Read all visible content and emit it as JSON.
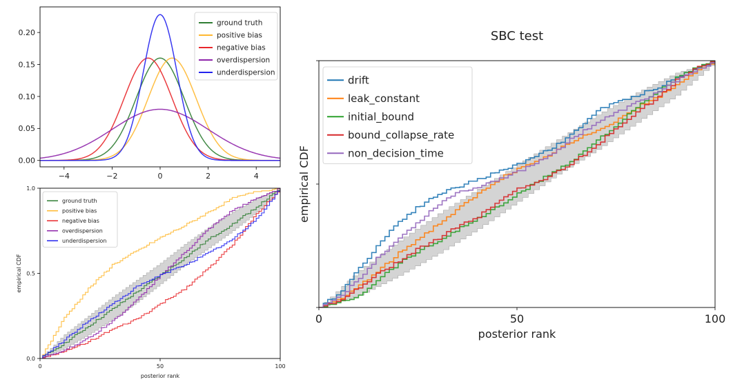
{
  "chart_data": [
    {
      "type": "line",
      "title": "",
      "xlabel": "",
      "ylabel": "",
      "xlim": [
        -5,
        5
      ],
      "ylim": [
        -0.01,
        0.24
      ],
      "xticks": [
        -4,
        -2,
        0,
        2,
        4
      ],
      "yticks": [
        0.0,
        0.05,
        0.1,
        0.15,
        0.2
      ],
      "xtick_labels": [
        "−4",
        "−2",
        "0",
        "2",
        "4"
      ],
      "ytick_labels": [
        "0.00",
        "0.05",
        "0.10",
        "0.15",
        "0.20"
      ],
      "grid": false,
      "legend_position": "top-right",
      "series": [
        {
          "name": "ground truth",
          "color": "#2e7d32",
          "mean": 0.0,
          "sd": 2.5,
          "peak": 0.16
        },
        {
          "name": "positive bias",
          "color": "#ffb830",
          "mean": 0.5,
          "sd": 2.5,
          "peak": 0.16
        },
        {
          "name": "negative bias",
          "color": "#e8262a",
          "mean": -0.5,
          "sd": 2.5,
          "peak": 0.16
        },
        {
          "name": "overdispersion",
          "color": "#8e24aa",
          "mean": 0.0,
          "sd": 5.0,
          "peak": 0.08
        },
        {
          "name": "underdispersion",
          "color": "#2222ee",
          "mean": 0.0,
          "sd": 1.75,
          "peak": 0.228
        }
      ]
    },
    {
      "type": "line",
      "title": "",
      "xlabel": "posterior rank",
      "ylabel": "empirical CDF",
      "xlim": [
        0,
        100
      ],
      "ylim": [
        0,
        1
      ],
      "xticks": [
        0,
        50,
        100
      ],
      "yticks": [
        0.0,
        0.5,
        1.0
      ],
      "xtick_labels": [
        "0",
        "50",
        "100"
      ],
      "ytick_labels": [
        "0.0",
        "0.5",
        "1.0"
      ],
      "grid": false,
      "legend_position": "top-left",
      "band": {
        "x": [
          0,
          10,
          20,
          30,
          40,
          50,
          60,
          70,
          80,
          90,
          100
        ],
        "lower": [
          0.0,
          0.06,
          0.14,
          0.23,
          0.33,
          0.44,
          0.55,
          0.65,
          0.75,
          0.86,
          1.0
        ],
        "upper": [
          0.0,
          0.14,
          0.25,
          0.36,
          0.46,
          0.56,
          0.67,
          0.77,
          0.86,
          0.94,
          1.0
        ]
      },
      "series": [
        {
          "name": "ground truth",
          "color": "#2e7d32",
          "x": [
            0,
            10,
            20,
            30,
            40,
            50,
            60,
            70,
            80,
            90,
            100
          ],
          "y": [
            0.0,
            0.09,
            0.19,
            0.29,
            0.39,
            0.49,
            0.59,
            0.7,
            0.79,
            0.89,
            1.0
          ]
        },
        {
          "name": "positive bias",
          "color": "#ffb830",
          "x": [
            0,
            10,
            20,
            30,
            40,
            50,
            60,
            70,
            80,
            90,
            100
          ],
          "y": [
            0.0,
            0.24,
            0.41,
            0.55,
            0.63,
            0.71,
            0.78,
            0.86,
            0.94,
            0.98,
            1.0
          ]
        },
        {
          "name": "negative bias",
          "color": "#e8262a",
          "x": [
            0,
            10,
            20,
            30,
            40,
            50,
            60,
            70,
            80,
            90,
            100
          ],
          "y": [
            0.0,
            0.04,
            0.1,
            0.17,
            0.23,
            0.32,
            0.41,
            0.53,
            0.67,
            0.85,
            1.0
          ]
        },
        {
          "name": "overdispersion",
          "color": "#8e24aa",
          "x": [
            0,
            10,
            20,
            30,
            40,
            50,
            60,
            70,
            80,
            90,
            100
          ],
          "y": [
            0.0,
            0.05,
            0.12,
            0.22,
            0.34,
            0.49,
            0.62,
            0.76,
            0.87,
            0.94,
            1.0
          ]
        },
        {
          "name": "underdispersion",
          "color": "#2222ee",
          "x": [
            0,
            10,
            20,
            30,
            40,
            50,
            60,
            70,
            80,
            90,
            100
          ],
          "y": [
            0.0,
            0.11,
            0.22,
            0.32,
            0.42,
            0.49,
            0.55,
            0.62,
            0.7,
            0.82,
            1.0
          ]
        }
      ]
    },
    {
      "type": "line",
      "title": "SBC test",
      "xlabel": "posterior rank",
      "ylabel": "empirical CDF",
      "xlim": [
        0,
        100
      ],
      "ylim": [
        0,
        1
      ],
      "xticks": [
        0,
        50,
        100
      ],
      "xtick_labels": [
        "0",
        "50",
        "100"
      ],
      "yticks": [
        0.0,
        0.5,
        1.0
      ],
      "ytick_labels": [
        "",
        "",
        ""
      ],
      "grid": false,
      "legend_position": "top-left",
      "band": {
        "x": [
          0,
          10,
          20,
          30,
          40,
          50,
          60,
          70,
          80,
          90,
          100
        ],
        "lower": [
          0.0,
          0.05,
          0.13,
          0.22,
          0.32,
          0.43,
          0.54,
          0.64,
          0.75,
          0.86,
          1.0
        ],
        "upper": [
          0.0,
          0.15,
          0.27,
          0.38,
          0.48,
          0.58,
          0.68,
          0.78,
          0.87,
          0.95,
          1.0
        ]
      },
      "series": [
        {
          "name": "drift",
          "color": "#1f77b4",
          "x": [
            0,
            5,
            10,
            15,
            20,
            25,
            30,
            35,
            40,
            45,
            50,
            55,
            60,
            65,
            70,
            75,
            80,
            85,
            90,
            95,
            100
          ],
          "y": [
            0.0,
            0.06,
            0.16,
            0.26,
            0.35,
            0.41,
            0.46,
            0.49,
            0.52,
            0.55,
            0.58,
            0.62,
            0.66,
            0.72,
            0.8,
            0.83,
            0.86,
            0.89,
            0.93,
            0.97,
            1.0
          ]
        },
        {
          "name": "leak_constant",
          "color": "#ff7f0e",
          "x": [
            0,
            5,
            10,
            15,
            20,
            25,
            30,
            35,
            40,
            45,
            50,
            55,
            60,
            65,
            70,
            75,
            80,
            85,
            90,
            95,
            100
          ],
          "y": [
            0.0,
            0.03,
            0.09,
            0.15,
            0.22,
            0.28,
            0.34,
            0.4,
            0.46,
            0.52,
            0.56,
            0.59,
            0.64,
            0.68,
            0.72,
            0.76,
            0.81,
            0.85,
            0.9,
            0.96,
            1.0
          ]
        },
        {
          "name": "initial_bound",
          "color": "#2ca02c",
          "x": [
            0,
            5,
            10,
            15,
            20,
            25,
            30,
            35,
            40,
            45,
            50,
            55,
            60,
            65,
            70,
            75,
            80,
            85,
            90,
            95,
            100
          ],
          "y": [
            0.0,
            0.02,
            0.05,
            0.12,
            0.18,
            0.23,
            0.27,
            0.32,
            0.36,
            0.41,
            0.46,
            0.51,
            0.56,
            0.61,
            0.68,
            0.74,
            0.81,
            0.87,
            0.93,
            0.97,
            1.0
          ]
        },
        {
          "name": "bound_collapse_rate",
          "color": "#d62728",
          "x": [
            0,
            5,
            10,
            15,
            20,
            25,
            30,
            35,
            40,
            45,
            50,
            55,
            60,
            65,
            70,
            75,
            80,
            85,
            90,
            95,
            100
          ],
          "y": [
            0.0,
            0.03,
            0.08,
            0.14,
            0.19,
            0.24,
            0.28,
            0.33,
            0.37,
            0.43,
            0.48,
            0.51,
            0.55,
            0.6,
            0.66,
            0.73,
            0.79,
            0.85,
            0.92,
            0.97,
            1.0
          ]
        },
        {
          "name": "non_decision_time",
          "color": "#9467bd",
          "x": [
            0,
            5,
            10,
            15,
            20,
            25,
            30,
            35,
            40,
            45,
            50,
            55,
            60,
            65,
            70,
            75,
            80,
            85,
            90,
            95,
            100
          ],
          "y": [
            0.0,
            0.04,
            0.12,
            0.21,
            0.28,
            0.35,
            0.42,
            0.47,
            0.49,
            0.52,
            0.55,
            0.59,
            0.64,
            0.7,
            0.75,
            0.79,
            0.83,
            0.87,
            0.92,
            0.96,
            1.0
          ]
        }
      ]
    }
  ]
}
